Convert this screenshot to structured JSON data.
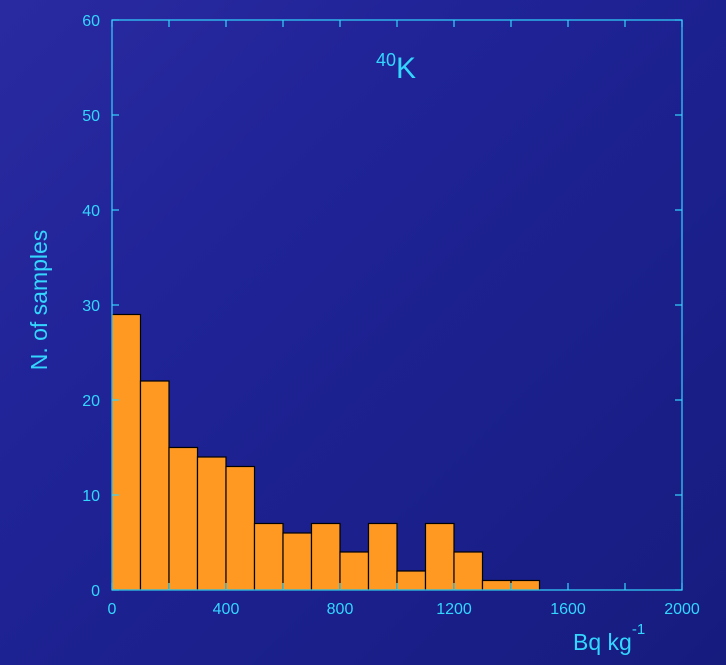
{
  "chart_data": {
    "type": "bar",
    "title_superscript": "40",
    "title_main": "K",
    "xlabel_main": "Bq kg",
    "xlabel_superscript": "-1",
    "ylabel": "N. of samples",
    "bin_width": 100,
    "bins": [
      {
        "x0": 0,
        "x1": 100,
        "count": 29
      },
      {
        "x0": 100,
        "x1": 200,
        "count": 22
      },
      {
        "x0": 200,
        "x1": 300,
        "count": 15
      },
      {
        "x0": 300,
        "x1": 400,
        "count": 14
      },
      {
        "x0": 400,
        "x1": 500,
        "count": 13
      },
      {
        "x0": 500,
        "x1": 600,
        "count": 7
      },
      {
        "x0": 600,
        "x1": 700,
        "count": 6
      },
      {
        "x0": 700,
        "x1": 800,
        "count": 7
      },
      {
        "x0": 800,
        "x1": 900,
        "count": 4
      },
      {
        "x0": 900,
        "x1": 1000,
        "count": 7
      },
      {
        "x0": 1000,
        "x1": 1100,
        "count": 2
      },
      {
        "x0": 1100,
        "x1": 1200,
        "count": 7
      },
      {
        "x0": 1200,
        "x1": 1300,
        "count": 4
      },
      {
        "x0": 1300,
        "x1": 1400,
        "count": 1
      },
      {
        "x0": 1400,
        "x1": 1500,
        "count": 1
      }
    ],
    "xlim": [
      0,
      2000
    ],
    "ylim": [
      0,
      60
    ],
    "x_ticks": [
      "0",
      "400",
      "800",
      "1200",
      "1600",
      "2000"
    ],
    "y_ticks": [
      "0",
      "10",
      "20",
      "30",
      "40",
      "50",
      "60"
    ],
    "grid": false,
    "colors": {
      "bar_fill": "#ff9922",
      "bar_stroke": "#000000",
      "axis": "#33d6ff",
      "text": "#33d6ff"
    }
  }
}
